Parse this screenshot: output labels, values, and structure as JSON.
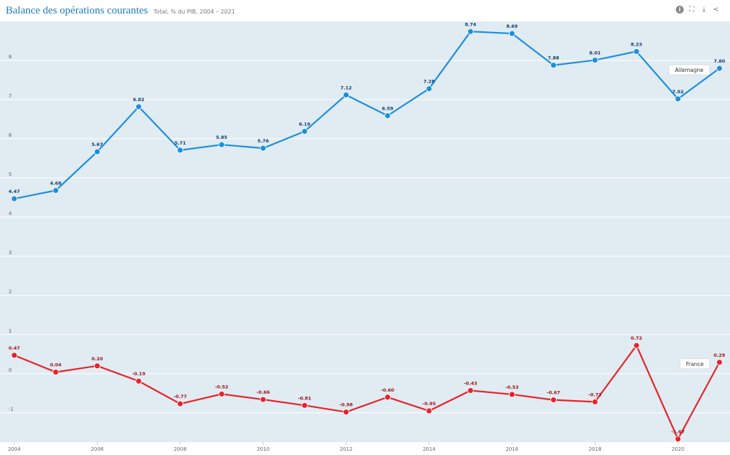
{
  "header": {
    "title": "Balance des opérations courantes",
    "subtitle": "Total, % du PIB, 2004 – 2021",
    "icons": [
      "info-icon",
      "fullscreen-icon",
      "download-icon",
      "share-icon"
    ]
  },
  "chart_data": {
    "type": "line",
    "title": "Balance des opérations courantes",
    "subtitle": "Total, % du PIB, 2004 – 2021",
    "xlabel": "",
    "ylabel": "",
    "x": [
      2004,
      2005,
      2006,
      2007,
      2008,
      2009,
      2010,
      2011,
      2012,
      2013,
      2014,
      2015,
      2016,
      2017,
      2018,
      2019,
      2020,
      2021
    ],
    "x_ticks": [
      "2004",
      "2006",
      "2008",
      "2010",
      "2012",
      "2014",
      "2016",
      "2018",
      "2020"
    ],
    "y_ticks": [
      "-1",
      "0",
      "1",
      "2",
      "3",
      "4",
      "5",
      "6",
      "7",
      "8"
    ],
    "ylim": [
      -1.75,
      9
    ],
    "grid": true,
    "series": [
      {
        "name": "Allemagne",
        "color": "#1b8fdc",
        "label_color": "#14406b",
        "values": [
          4.47,
          4.68,
          5.67,
          6.82,
          5.71,
          5.85,
          5.76,
          6.19,
          7.12,
          6.59,
          7.28,
          8.74,
          8.69,
          7.88,
          8.01,
          8.23,
          7.02,
          7.8
        ],
        "labels": [
          "4.47",
          "4.68",
          "5.67",
          "6.82",
          "5.71",
          "5.85",
          "5.76",
          "6.19",
          "7.12",
          "6.59",
          "7.28",
          "8.74",
          "8.69",
          "7.88",
          "8.01",
          "8.23",
          "7.02",
          "7.80"
        ]
      },
      {
        "name": "France",
        "color": "#e6232b",
        "label_color": "#9b1218",
        "values": [
          0.47,
          0.04,
          0.2,
          -0.19,
          -0.77,
          -0.52,
          -0.66,
          -0.81,
          -0.98,
          -0.6,
          -0.95,
          -0.43,
          -0.53,
          -0.67,
          -0.72,
          0.72,
          -1.67,
          0.29
        ],
        "labels": [
          "0.47",
          "0.04",
          "0.20",
          "-0.19",
          "-0.77",
          "-0.52",
          "-0.66",
          "-0.81",
          "-0.98",
          "-0.60",
          "-0.95",
          "-0.43",
          "-0.53",
          "-0.67",
          "-0.72",
          "0.72",
          "-1.67",
          "0.29"
        ]
      }
    ]
  }
}
